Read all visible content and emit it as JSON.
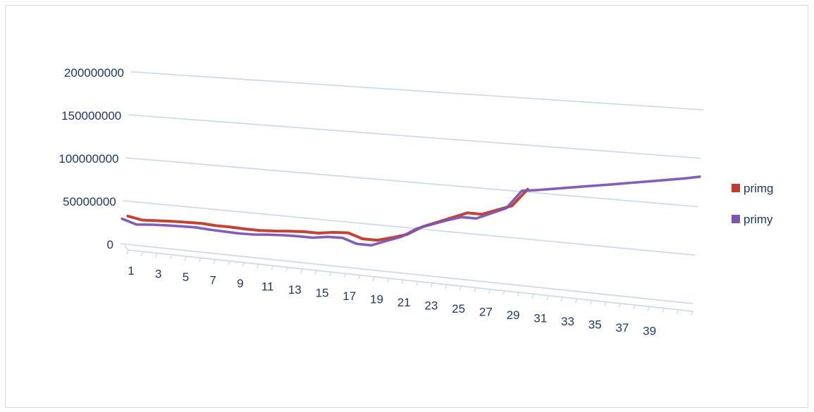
{
  "chart_data": {
    "type": "line",
    "style": "3d-perspective line chart",
    "x": [
      1,
      2,
      3,
      4,
      5,
      6,
      7,
      8,
      9,
      10,
      11,
      12,
      13,
      14,
      15,
      16,
      17,
      18,
      19,
      20,
      21,
      22,
      23,
      24,
      25,
      26,
      27,
      28,
      29,
      30,
      31,
      32,
      33,
      34,
      35,
      36,
      37,
      38,
      39,
      40
    ],
    "x_tick_labels": [
      "1",
      "3",
      "5",
      "7",
      "9",
      "11",
      "13",
      "15",
      "17",
      "19",
      "21",
      "23",
      "25",
      "27",
      "29",
      "31",
      "33",
      "35",
      "37",
      "39"
    ],
    "y_tick_labels": [
      "0",
      "50000000",
      "100000000",
      "150000000",
      "200000000"
    ],
    "ylim": [
      0,
      200000000
    ],
    "grid": true,
    "legend_position": "right",
    "series": [
      {
        "name": "primg",
        "color": "#c0392b",
        "values": [
          30500000,
          27500000,
          28500000,
          29500000,
          30000000,
          30500000,
          29500000,
          29500000,
          29000000,
          29000000,
          30000000,
          31500000,
          32500000,
          32500000,
          35000000,
          36000000,
          31000000,
          31000000,
          35500000,
          40500000,
          50500000,
          57000000,
          63500000,
          70000000,
          70000000,
          76000000,
          82000000,
          101000000,
          null,
          null,
          null,
          null,
          null,
          null,
          null,
          null,
          null,
          null,
          null,
          null
        ]
      },
      {
        "name": "primy",
        "color": "#7b55b5",
        "values": [
          29000000,
          24000000,
          25500000,
          26500000,
          27000000,
          27500000,
          26500000,
          26000000,
          25500000,
          26000000,
          27500000,
          28500000,
          29000000,
          29000000,
          31500000,
          32000000,
          27000000,
          27000000,
          33500000,
          39500000,
          50000000,
          56000000,
          62000000,
          67000000,
          67000000,
          74000000,
          81000000,
          101000000,
          103000000,
          105500000,
          108000000,
          110500000,
          113000000,
          115500000,
          118000000,
          120500000,
          123000000,
          125500000,
          128000000,
          131000000
        ]
      }
    ]
  }
}
